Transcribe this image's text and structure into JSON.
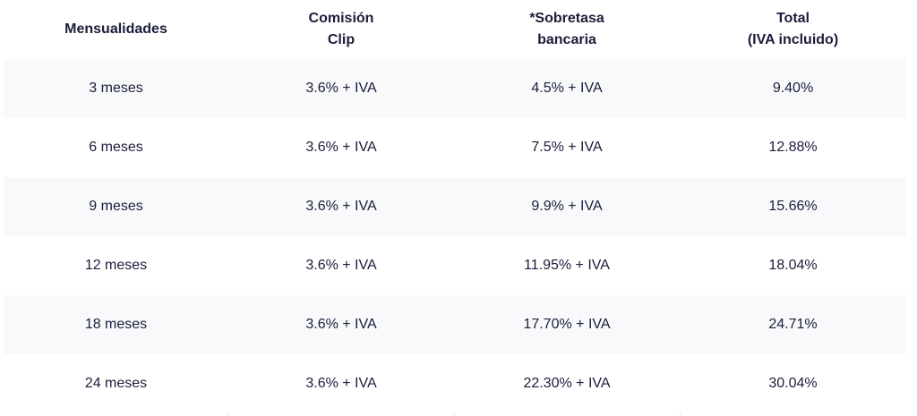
{
  "table": {
    "headers": [
      {
        "line1": "Mensualidades",
        "line2": ""
      },
      {
        "line1": "Comisión",
        "line2": "Clip"
      },
      {
        "line1": "*Sobretasa",
        "line2": "bancaria"
      },
      {
        "line1": "Total",
        "line2": "(IVA incluido)"
      }
    ],
    "rows": [
      [
        "3 meses",
        "3.6% + IVA",
        "4.5% + IVA",
        "9.40%"
      ],
      [
        "6 meses",
        "3.6% + IVA",
        "7.5% + IVA",
        "12.88%"
      ],
      [
        "9 meses",
        "3.6% + IVA",
        "9.9% + IVA",
        "15.66%"
      ],
      [
        "12 meses",
        "3.6% + IVA",
        "11.95% + IVA",
        "18.04%"
      ],
      [
        "18 meses",
        "3.6% + IVA",
        "17.70% + IVA",
        "24.71%"
      ],
      [
        "24 meses",
        "3.6% + IVA",
        "22.30% + IVA",
        "30.04%"
      ]
    ]
  },
  "colors": {
    "text": "#1c1d3a",
    "stripe": "#f8f9fb",
    "divider": "#e6e7ec"
  }
}
